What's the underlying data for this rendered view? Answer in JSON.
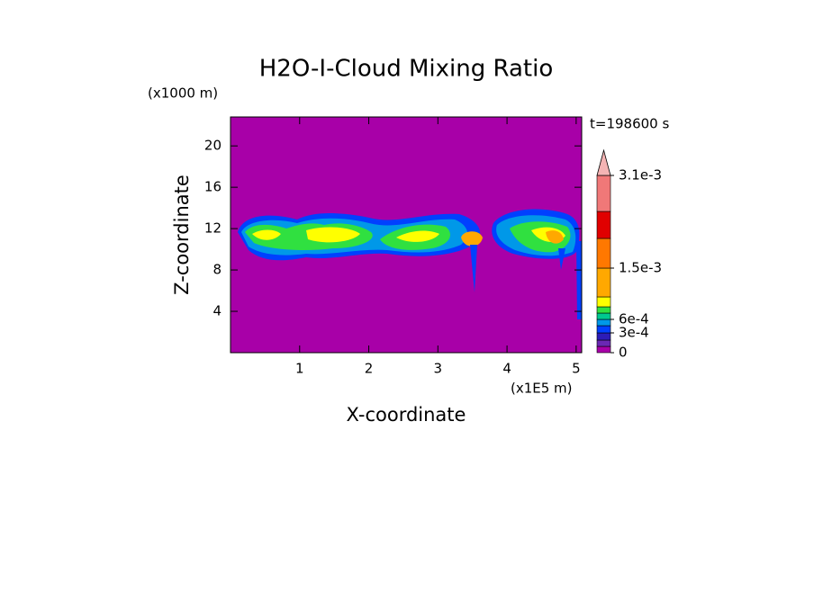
{
  "chart_data": {
    "type": "contour",
    "title": "H2O-I-Cloud Mixing Ratio",
    "x_label": "X-coordinate",
    "y_label": "Z-coordinate",
    "x_unit": "(x1E5 m)",
    "y_unit": "(x1000 m)",
    "time_label": "t=198600 s",
    "xlim": [
      0,
      5.08
    ],
    "ylim": [
      0,
      22.8
    ],
    "xticks": [
      1,
      2,
      3,
      4,
      5
    ],
    "yticks": [
      4,
      8,
      12,
      16,
      20
    ],
    "colorbar": {
      "levels": [
        0,
        0.0001,
        0.0002,
        0.0003,
        0.00045,
        0.0006,
        0.00075,
        0.0009,
        0.0012,
        0.0015,
        0.002,
        0.0025,
        0.0031
      ],
      "colors": [
        "#a800a8",
        "#6a28b4",
        "#2c1cb8",
        "#0040ff",
        "#0098e8",
        "#00c890",
        "#30e040",
        "#ffff00",
        "#ffa800",
        "#ff7800",
        "#e00000",
        "#f07878"
      ],
      "extend_color": "#f4b4b4",
      "ticks": [
        0,
        {
          "value": 0.0003,
          "label": "3e-4"
        },
        {
          "value": 0.0006,
          "label": "6e-4"
        },
        {
          "value": 0.0015,
          "label": "1.5e-3"
        },
        {
          "value": 0.0031,
          "label": "3.1e-3"
        }
      ]
    }
  }
}
